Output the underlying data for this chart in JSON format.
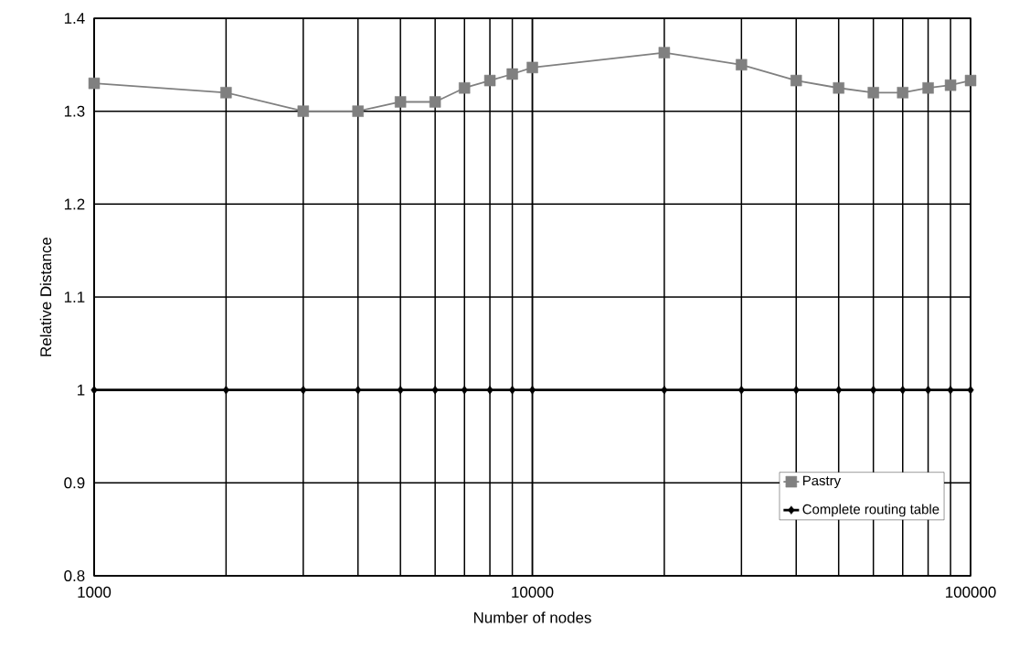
{
  "chart_data": {
    "type": "line",
    "xlabel": "Number of nodes",
    "ylabel": "Relative Distance",
    "x": [
      1000,
      2000,
      3000,
      4000,
      5000,
      6000,
      7000,
      8000,
      9000,
      10000,
      20000,
      30000,
      40000,
      50000,
      60000,
      70000,
      80000,
      90000,
      100000
    ],
    "series": [
      {
        "name": "Pastry",
        "color": "#808080",
        "marker": "square",
        "values": [
          1.33,
          1.32,
          1.3,
          1.3,
          1.31,
          1.31,
          1.325,
          1.333,
          1.34,
          1.347,
          1.363,
          1.35,
          1.333,
          1.325,
          1.32,
          1.32,
          1.325,
          1.328,
          1.333
        ]
      },
      {
        "name": "Complete routing table",
        "color": "#000000",
        "marker": "diamond",
        "values": [
          1,
          1,
          1,
          1,
          1,
          1,
          1,
          1,
          1,
          1,
          1,
          1,
          1,
          1,
          1,
          1,
          1,
          1,
          1
        ]
      }
    ],
    "log": "x",
    "xlim": [
      1000,
      100000
    ],
    "xticks": [
      1000,
      10000,
      100000
    ],
    "ylim": [
      0.8,
      1.4
    ],
    "yticks": [
      0.8,
      0.9,
      1,
      1.1,
      1.2,
      1.3,
      1.4
    ],
    "grid": true,
    "legend": "bottom right",
    "line_style": "solid"
  }
}
